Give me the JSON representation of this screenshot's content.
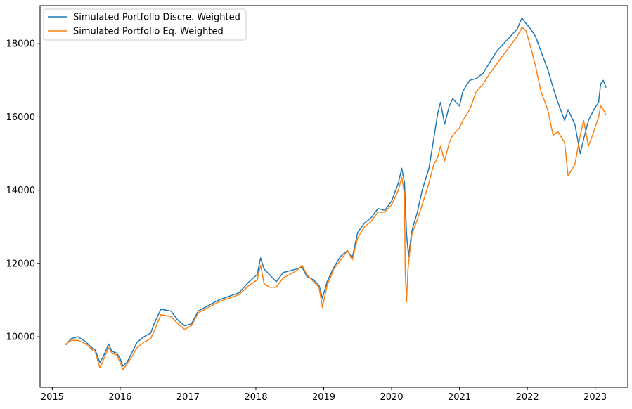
{
  "chart_data": {
    "type": "line",
    "title": "",
    "xlabel": "",
    "ylabel": "",
    "xlim": [
      2014.82,
      2023.48
    ],
    "ylim": [
      8620,
      19040
    ],
    "x_ticks": [
      2015,
      2016,
      2017,
      2018,
      2019,
      2020,
      2021,
      2022,
      2023
    ],
    "x_tick_labels": [
      "2015",
      "2016",
      "2017",
      "2018",
      "2019",
      "2020",
      "2021",
      "2022",
      "2023"
    ],
    "y_ticks": [
      10000,
      12000,
      14000,
      16000,
      18000
    ],
    "y_tick_labels": [
      "10000",
      "12000",
      "14000",
      "16000",
      "18000"
    ],
    "grid": false,
    "legend_position": "top-left",
    "series": [
      {
        "name": "Simulated Portfolio Discre. Weighted",
        "color": "#1f77b4",
        "x": [
          2015.2,
          2015.28,
          2015.38,
          2015.5,
          2015.58,
          2015.63,
          2015.7,
          2015.75,
          2015.83,
          2015.88,
          2015.95,
          2016.0,
          2016.04,
          2016.1,
          2016.17,
          2016.25,
          2016.35,
          2016.45,
          2016.5,
          2016.6,
          2016.75,
          2016.85,
          2016.95,
          2017.05,
          2017.15,
          2017.3,
          2017.45,
          2017.6,
          2017.75,
          2017.9,
          2018.02,
          2018.07,
          2018.12,
          2018.2,
          2018.3,
          2018.4,
          2018.5,
          2018.6,
          2018.68,
          2018.75,
          2018.85,
          2018.93,
          2018.98,
          2019.05,
          2019.15,
          2019.25,
          2019.35,
          2019.42,
          2019.5,
          2019.6,
          2019.7,
          2019.8,
          2019.9,
          2020.0,
          2020.1,
          2020.15,
          2020.19,
          2020.22,
          2020.25,
          2020.3,
          2020.38,
          2020.45,
          2020.55,
          2020.62,
          2020.68,
          2020.72,
          2020.78,
          2020.85,
          2020.9,
          2021.0,
          2021.05,
          2021.15,
          2021.25,
          2021.35,
          2021.45,
          2021.55,
          2021.65,
          2021.75,
          2021.85,
          2021.92,
          2021.98,
          2022.05,
          2022.12,
          2022.2,
          2022.3,
          2022.38,
          2022.45,
          2022.55,
          2022.6,
          2022.7,
          2022.78,
          2022.83,
          2022.9,
          2022.98,
          2023.05,
          2023.08,
          2023.12,
          2023.16
        ],
        "y": [
          9780,
          9950,
          10000,
          9850,
          9700,
          9650,
          9300,
          9450,
          9800,
          9600,
          9550,
          9400,
          9200,
          9300,
          9550,
          9850,
          10000,
          10100,
          10350,
          10750,
          10700,
          10450,
          10300,
          10350,
          10700,
          10850,
          11000,
          11100,
          11200,
          11500,
          11700,
          12150,
          11850,
          11700,
          11500,
          11750,
          11800,
          11850,
          11900,
          11650,
          11550,
          11400,
          11050,
          11500,
          11900,
          12200,
          12350,
          12150,
          12850,
          13100,
          13250,
          13500,
          13450,
          13700,
          14200,
          14600,
          14200,
          12800,
          12200,
          12900,
          13400,
          14000,
          14600,
          15400,
          16100,
          16400,
          15800,
          16300,
          16500,
          16300,
          16700,
          17000,
          17050,
          17200,
          17500,
          17800,
          18000,
          18200,
          18400,
          18700,
          18550,
          18400,
          18200,
          17800,
          17300,
          16800,
          16400,
          15900,
          16200,
          15800,
          15000,
          15400,
          15900,
          16200,
          16400,
          16900,
          17000,
          16800
        ]
      },
      {
        "name": "Simulated Portfolio Eq. Weighted",
        "color": "#ff7f0e",
        "x": [
          2015.2,
          2015.28,
          2015.38,
          2015.5,
          2015.58,
          2015.63,
          2015.7,
          2015.75,
          2015.83,
          2015.88,
          2015.95,
          2016.0,
          2016.04,
          2016.1,
          2016.17,
          2016.25,
          2016.35,
          2016.45,
          2016.5,
          2016.6,
          2016.75,
          2016.85,
          2016.95,
          2017.05,
          2017.15,
          2017.3,
          2017.45,
          2017.6,
          2017.75,
          2017.9,
          2018.02,
          2018.07,
          2018.12,
          2018.2,
          2018.3,
          2018.4,
          2018.5,
          2018.6,
          2018.68,
          2018.75,
          2018.85,
          2018.93,
          2018.98,
          2019.05,
          2019.15,
          2019.25,
          2019.35,
          2019.42,
          2019.5,
          2019.6,
          2019.7,
          2019.8,
          2019.9,
          2020.0,
          2020.1,
          2020.15,
          2020.19,
          2020.2,
          2020.22,
          2020.24,
          2020.26,
          2020.3,
          2020.38,
          2020.45,
          2020.55,
          2020.62,
          2020.68,
          2020.72,
          2020.78,
          2020.85,
          2020.9,
          2021.0,
          2021.05,
          2021.15,
          2021.25,
          2021.35,
          2021.45,
          2021.55,
          2021.65,
          2021.75,
          2021.85,
          2021.92,
          2021.98,
          2022.05,
          2022.12,
          2022.2,
          2022.3,
          2022.38,
          2022.45,
          2022.55,
          2022.6,
          2022.7,
          2022.78,
          2022.83,
          2022.9,
          2022.98,
          2023.05,
          2023.08,
          2023.12,
          2023.16
        ],
        "y": [
          9800,
          9900,
          9900,
          9800,
          9650,
          9600,
          9150,
          9350,
          9700,
          9550,
          9500,
          9300,
          9100,
          9250,
          9450,
          9700,
          9850,
          9950,
          10150,
          10600,
          10550,
          10350,
          10200,
          10300,
          10650,
          10800,
          10950,
          11050,
          11150,
          11400,
          11550,
          11950,
          11450,
          11350,
          11350,
          11600,
          11700,
          11800,
          11950,
          11700,
          11500,
          11350,
          10800,
          11400,
          11850,
          12100,
          12350,
          12100,
          12700,
          13000,
          13150,
          13400,
          13400,
          13600,
          14000,
          14350,
          13900,
          11800,
          10950,
          11800,
          12200,
          12800,
          13200,
          13600,
          14200,
          14700,
          14900,
          15200,
          14800,
          15300,
          15500,
          15700,
          15900,
          16200,
          16700,
          16900,
          17200,
          17450,
          17700,
          17950,
          18200,
          18450,
          18350,
          17900,
          17400,
          16700,
          16200,
          15500,
          15600,
          15300,
          14400,
          14700,
          15500,
          15900,
          15200,
          15600,
          16000,
          16300,
          16200,
          16050
        ]
      }
    ]
  }
}
